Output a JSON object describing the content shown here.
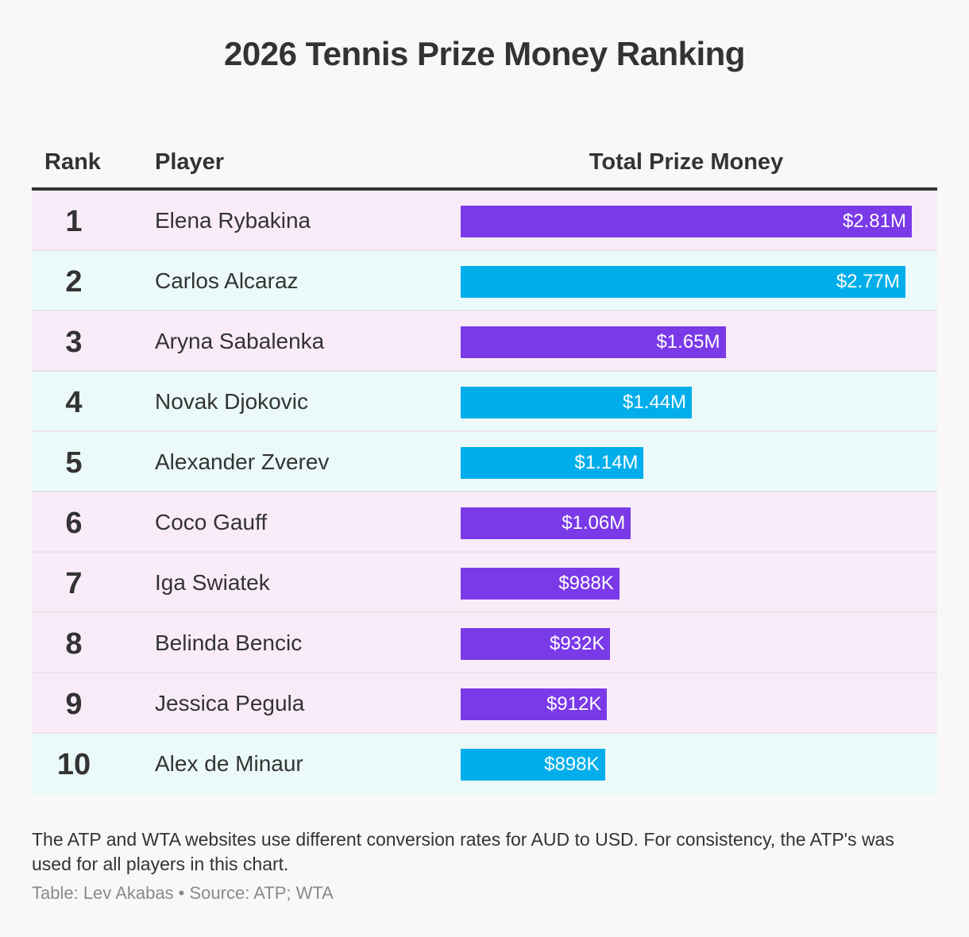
{
  "title": "2026 Tennis Prize Money Ranking",
  "headers": {
    "rank": "Rank",
    "player": "Player",
    "money": "Total Prize Money"
  },
  "colors": {
    "wta_bar": "#7a3ae8",
    "atp_bar": "#01aeeb",
    "wta_row": "#f9ecf8",
    "atp_row": "#ebfaf9"
  },
  "chart_data": {
    "type": "bar",
    "orientation": "horizontal",
    "xlim": [
      0,
      2.81
    ],
    "rows": [
      {
        "rank": "1",
        "player": "Elena Rybakina",
        "value": 2.81,
        "label": "$2.81M",
        "tour": "wta"
      },
      {
        "rank": "2",
        "player": "Carlos Alcaraz",
        "value": 2.77,
        "label": "$2.77M",
        "tour": "atp"
      },
      {
        "rank": "3",
        "player": "Aryna Sabalenka",
        "value": 1.65,
        "label": "$1.65M",
        "tour": "wta"
      },
      {
        "rank": "4",
        "player": "Novak Djokovic",
        "value": 1.44,
        "label": "$1.44M",
        "tour": "atp"
      },
      {
        "rank": "5",
        "player": "Alexander Zverev",
        "value": 1.14,
        "label": "$1.14M",
        "tour": "atp"
      },
      {
        "rank": "6",
        "player": "Coco Gauff",
        "value": 1.06,
        "label": "$1.06M",
        "tour": "wta"
      },
      {
        "rank": "7",
        "player": "Iga Swiatek",
        "value": 0.988,
        "label": "$988K",
        "tour": "wta"
      },
      {
        "rank": "8",
        "player": "Belinda Bencic",
        "value": 0.932,
        "label": "$932K",
        "tour": "wta"
      },
      {
        "rank": "9",
        "player": "Jessica Pegula",
        "value": 0.912,
        "label": "$912K",
        "tour": "wta"
      },
      {
        "rank": "10",
        "player": "Alex de Minaur",
        "value": 0.898,
        "label": "$898K",
        "tour": "atp"
      }
    ]
  },
  "note": "The ATP and WTA websites use different conversion rates for AUD to USD. For consistency, the ATP's was used for all players in this chart.",
  "source": "Table: Lev Akabas • Source: ATP; WTA"
}
